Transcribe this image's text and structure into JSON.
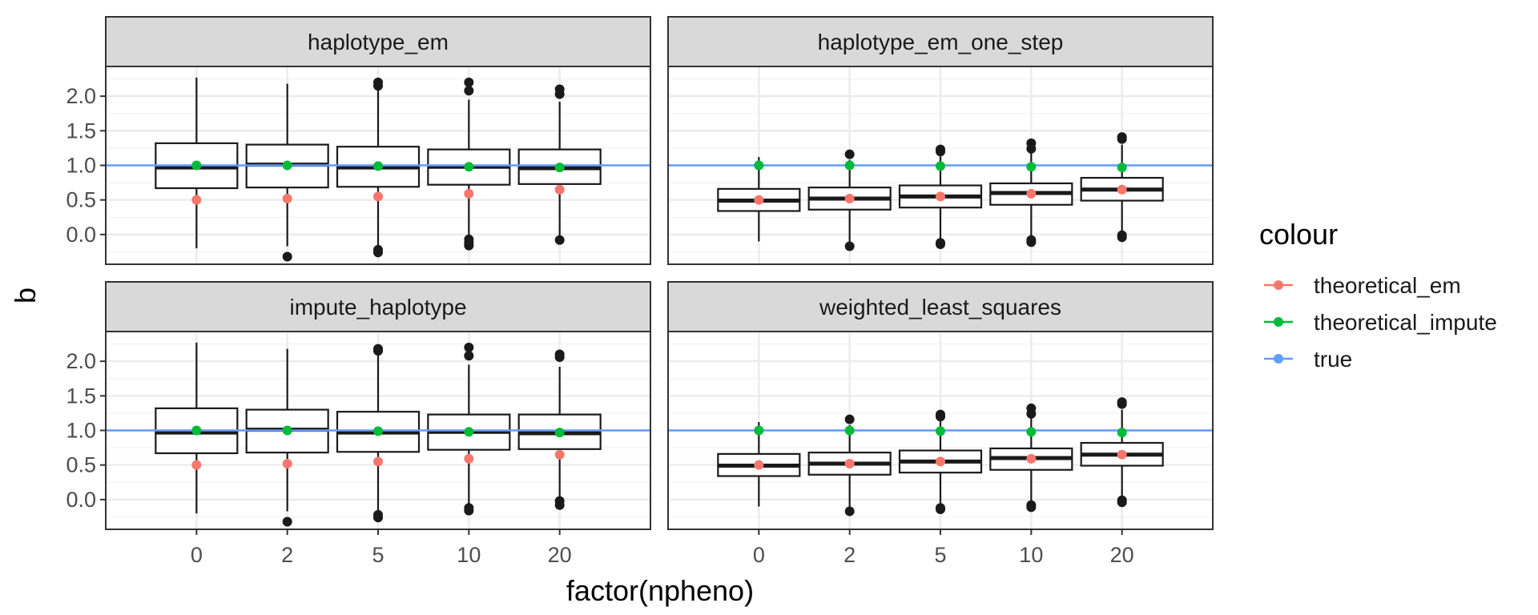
{
  "chart_data": {
    "type": "boxplot",
    "xlabel": "factor(npheno)",
    "ylabel": "b",
    "ylim": [
      -0.43,
      2.43
    ],
    "y_ticks": [
      0.0,
      0.5,
      1.0,
      1.5,
      2.0
    ],
    "y_tick_labels": [
      "0.0",
      "0.5",
      "1.0",
      "1.5",
      "2.0"
    ],
    "categories": [
      "0",
      "2",
      "5",
      "10",
      "20"
    ],
    "grid": true,
    "legend": {
      "title": "colour",
      "position": "right",
      "entries": [
        {
          "name": "theoretical_em",
          "color": "#F8766D"
        },
        {
          "name": "theoretical_impute",
          "color": "#00BA38"
        },
        {
          "name": "true",
          "color": "#619CFF"
        }
      ]
    },
    "reference_line": {
      "name": "true",
      "value": 1.0,
      "color": "#619CFF"
    },
    "panels": [
      {
        "title": "haplotype_em",
        "boxes": [
          {
            "category": "0",
            "low": -0.2,
            "q1": 0.67,
            "median": 0.97,
            "q3": 1.32,
            "high": 2.27,
            "outliers": []
          },
          {
            "category": "2",
            "low": -0.17,
            "q1": 0.68,
            "median": 1.01,
            "q3": 1.3,
            "high": 2.18,
            "outliers": [
              -0.32
            ]
          },
          {
            "category": "5",
            "low": -0.2,
            "q1": 0.69,
            "median": 0.97,
            "q3": 1.27,
            "high": 2.12,
            "outliers": [
              -0.22,
              -0.26,
              2.15,
              2.2
            ]
          },
          {
            "category": "10",
            "low": -0.12,
            "q1": 0.72,
            "median": 0.98,
            "q3": 1.23,
            "high": 1.95,
            "outliers": [
              -0.07,
              -0.12,
              -0.16,
              2.08,
              2.2
            ]
          },
          {
            "category": "20",
            "low": -0.05,
            "q1": 0.73,
            "median": 0.96,
            "q3": 1.23,
            "high": 1.92,
            "outliers": [
              -0.08,
              2.03,
              2.1
            ]
          }
        ],
        "theoretical_em": [
          0.5,
          0.52,
          0.55,
          0.59,
          0.65
        ],
        "theoretical_impute": [
          1.0,
          1.0,
          0.99,
          0.98,
          0.97
        ]
      },
      {
        "title": "haplotype_em_one_step",
        "boxes": [
          {
            "category": "0",
            "low": -0.1,
            "q1": 0.34,
            "median": 0.49,
            "q3": 0.66,
            "high": 1.12,
            "outliers": []
          },
          {
            "category": "2",
            "low": -0.1,
            "q1": 0.36,
            "median": 0.52,
            "q3": 0.68,
            "high": 1.08,
            "outliers": [
              -0.17,
              1.16
            ]
          },
          {
            "category": "5",
            "low": -0.08,
            "q1": 0.39,
            "median": 0.55,
            "q3": 0.71,
            "high": 1.13,
            "outliers": [
              -0.12,
              -0.14,
              1.2,
              1.23
            ]
          },
          {
            "category": "10",
            "low": -0.05,
            "q1": 0.43,
            "median": 0.6,
            "q3": 0.74,
            "high": 1.2,
            "outliers": [
              -0.08,
              -0.11,
              1.24,
              1.32
            ]
          },
          {
            "category": "20",
            "low": 0.03,
            "q1": 0.49,
            "median": 0.65,
            "q3": 0.82,
            "high": 1.3,
            "outliers": [
              -0.01,
              -0.04,
              1.38,
              1.41
            ]
          }
        ],
        "theoretical_em": [
          0.5,
          0.52,
          0.55,
          0.59,
          0.65
        ],
        "theoretical_impute": [
          1.0,
          1.0,
          0.99,
          0.98,
          0.97
        ]
      },
      {
        "title": "impute_haplotype",
        "boxes": [
          {
            "category": "0",
            "low": -0.2,
            "q1": 0.67,
            "median": 0.97,
            "q3": 1.32,
            "high": 2.27,
            "outliers": []
          },
          {
            "category": "2",
            "low": -0.17,
            "q1": 0.68,
            "median": 1.01,
            "q3": 1.3,
            "high": 2.18,
            "outliers": [
              -0.32
            ]
          },
          {
            "category": "5",
            "low": -0.2,
            "q1": 0.69,
            "median": 0.97,
            "q3": 1.27,
            "high": 2.12,
            "outliers": [
              -0.22,
              -0.26,
              2.15,
              2.18
            ]
          },
          {
            "category": "10",
            "low": -0.12,
            "q1": 0.72,
            "median": 0.98,
            "q3": 1.23,
            "high": 1.95,
            "outliers": [
              -0.12,
              -0.16,
              2.08,
              2.2
            ]
          },
          {
            "category": "20",
            "low": -0.05,
            "q1": 0.73,
            "median": 0.96,
            "q3": 1.23,
            "high": 1.92,
            "outliers": [
              -0.02,
              -0.08,
              2.06,
              2.1
            ]
          }
        ],
        "theoretical_em": [
          0.5,
          0.52,
          0.55,
          0.59,
          0.65
        ],
        "theoretical_impute": [
          1.0,
          1.0,
          0.99,
          0.98,
          0.97
        ]
      },
      {
        "title": "weighted_least_squares",
        "boxes": [
          {
            "category": "0",
            "low": -0.1,
            "q1": 0.34,
            "median": 0.49,
            "q3": 0.66,
            "high": 1.12,
            "outliers": []
          },
          {
            "category": "2",
            "low": -0.1,
            "q1": 0.36,
            "median": 0.52,
            "q3": 0.68,
            "high": 1.08,
            "outliers": [
              -0.17,
              1.16
            ]
          },
          {
            "category": "5",
            "low": -0.08,
            "q1": 0.39,
            "median": 0.55,
            "q3": 0.71,
            "high": 1.13,
            "outliers": [
              -0.12,
              -0.14,
              1.2,
              1.23
            ]
          },
          {
            "category": "10",
            "low": -0.05,
            "q1": 0.43,
            "median": 0.6,
            "q3": 0.74,
            "high": 1.2,
            "outliers": [
              -0.08,
              -0.11,
              1.24,
              1.32
            ]
          },
          {
            "category": "20",
            "low": 0.03,
            "q1": 0.49,
            "median": 0.65,
            "q3": 0.82,
            "high": 1.3,
            "outliers": [
              -0.01,
              -0.04,
              1.38,
              1.41
            ]
          }
        ],
        "theoretical_em": [
          0.5,
          0.52,
          0.55,
          0.59,
          0.65
        ],
        "theoretical_impute": [
          1.0,
          1.0,
          0.99,
          0.98,
          0.97
        ]
      }
    ]
  }
}
